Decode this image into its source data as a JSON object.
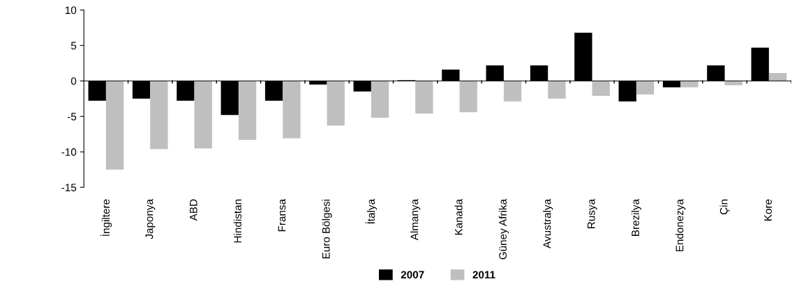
{
  "chart_data": {
    "type": "bar",
    "categories": [
      "İngiltere",
      "Japonya",
      "ABD",
      "Hindistan",
      "Fransa",
      "Euro Bölgesi",
      "İtalya",
      "Almanya",
      "Kanada",
      "Güney Afrika",
      "Avustralya",
      "Rusya",
      "Brezilya",
      "Endonezya",
      "Çin",
      "Kore"
    ],
    "series": [
      {
        "name": "2007",
        "color": "#000000",
        "values": [
          -2.8,
          -2.5,
          -2.8,
          -4.8,
          -2.8,
          -0.5,
          -1.5,
          0.1,
          1.6,
          2.2,
          2.2,
          6.8,
          -2.9,
          -0.9,
          2.2,
          4.7
        ]
      },
      {
        "name": "2011",
        "color": "#bfbfbf",
        "values": [
          -12.5,
          -9.6,
          -9.5,
          -8.3,
          -8.1,
          -6.3,
          -5.2,
          -4.6,
          -4.4,
          -2.9,
          -2.5,
          -2.1,
          -1.9,
          -0.9,
          -0.6,
          1.1
        ]
      }
    ],
    "ylim": [
      -15,
      10
    ],
    "yticks": [
      -15,
      -10,
      -5,
      0,
      5,
      10
    ],
    "legend": "bottom"
  }
}
